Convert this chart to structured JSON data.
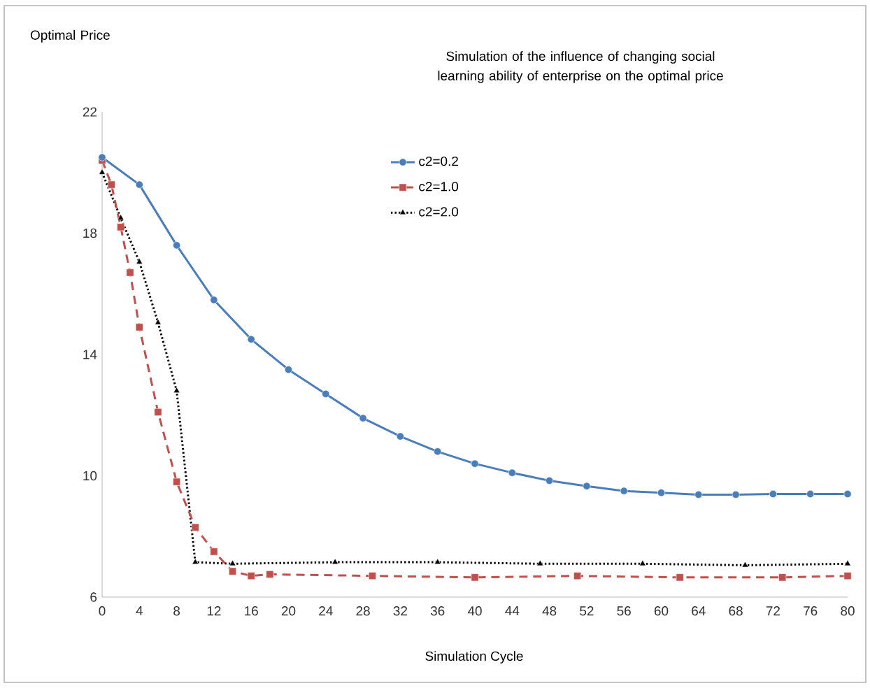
{
  "chart_data": {
    "type": "line",
    "title": "Simulation of the influence of changing social learning ability of enterprise on the optimal price",
    "xlabel": "Simulation Cycle",
    "ylabel": "Optimal Price",
    "xlim": [
      0,
      80
    ],
    "xticks": [
      0,
      4,
      8,
      12,
      16,
      20,
      24,
      28,
      32,
      36,
      40,
      44,
      48,
      52,
      56,
      60,
      64,
      68,
      72,
      76,
      80
    ],
    "ylim": [
      6,
      22
    ],
    "yticks": [
      6,
      10,
      14,
      18,
      22
    ],
    "legend": "top",
    "series": [
      {
        "name": "c2=0.2",
        "color": "#4a7ebb",
        "marker": "circle",
        "line_style": "solid",
        "x": [
          0,
          4,
          8,
          12,
          16,
          20,
          24,
          28,
          32,
          36,
          40,
          44,
          48,
          52,
          56,
          60,
          64,
          68,
          72,
          76,
          80
        ],
        "values": [
          20.5,
          19.6,
          17.6,
          15.8,
          14.5,
          13.5,
          12.7,
          11.9,
          11.3,
          10.8,
          10.4,
          10.1,
          9.84,
          9.66,
          9.5,
          9.44,
          9.38,
          9.38,
          9.4,
          9.4,
          9.4
        ]
      },
      {
        "name": "c2=1.0",
        "color": "#c0504d",
        "marker": "square",
        "line_style": "dashed",
        "x": [
          0,
          1,
          2,
          3,
          4,
          6,
          8,
          10,
          12,
          14,
          16,
          18,
          29,
          40,
          51,
          62,
          73,
          80
        ],
        "values": [
          20.4,
          19.6,
          18.2,
          16.7,
          14.9,
          12.1,
          9.8,
          8.3,
          7.5,
          6.85,
          6.7,
          6.75,
          6.7,
          6.65,
          6.7,
          6.65,
          6.65,
          6.7
        ]
      },
      {
        "name": "c2=2.0",
        "color": "#000000",
        "marker": "triangle",
        "line_style": "dotted",
        "x": [
          0,
          2,
          4,
          6,
          8,
          10,
          14,
          25,
          36,
          47,
          58,
          69,
          80
        ],
        "values": [
          20.0,
          18.5,
          17.05,
          15.05,
          12.8,
          7.15,
          7.1,
          7.15,
          7.15,
          7.1,
          7.1,
          7.05,
          7.1
        ]
      }
    ]
  }
}
